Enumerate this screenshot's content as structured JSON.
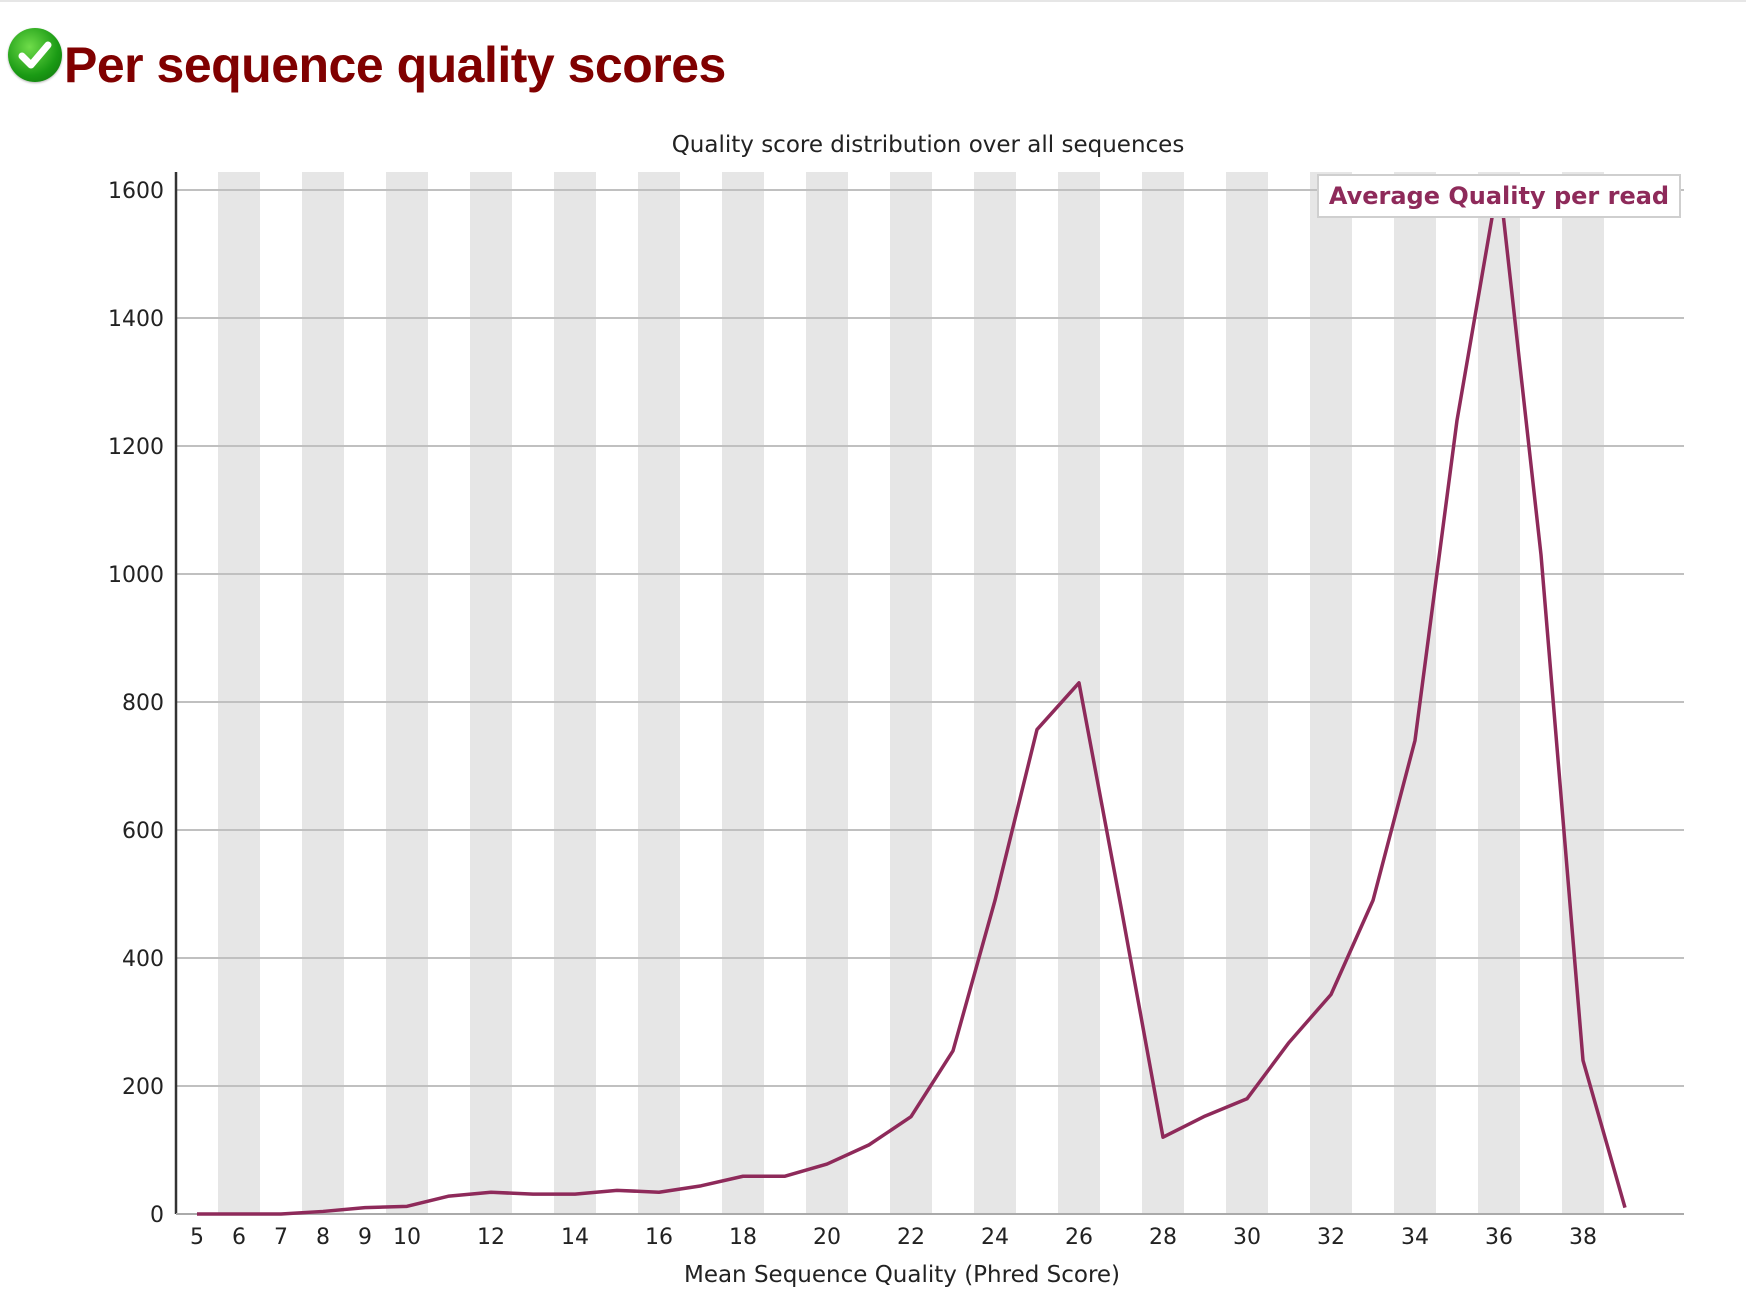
{
  "header": {
    "status_icon": "check-circle-icon",
    "title": "Per sequence quality scores"
  },
  "colors": {
    "title": "#800000",
    "line": "#8e2a5a",
    "stripe": "#e6e6e6",
    "grid": "#c0c0c0"
  },
  "chart_data": {
    "type": "line",
    "title": "Quality score distribution over all sequences",
    "xlabel": "Mean Sequence Quality (Phred Score)",
    "ylabel": "",
    "ylim": [
      0,
      1600
    ],
    "yticks": [
      0,
      200,
      400,
      600,
      800,
      1000,
      1200,
      1400,
      1600
    ],
    "xtick_labels": [
      "5",
      "6",
      "7",
      "8",
      "9",
      "10",
      "12",
      "14",
      "16",
      "18",
      "20",
      "22",
      "24",
      "26",
      "28",
      "30",
      "32",
      "34",
      "36",
      "38"
    ],
    "legend": [
      "Average Quality per read"
    ],
    "legend_position": "top-right",
    "grid": true,
    "x": [
      5,
      6,
      7,
      8,
      9,
      10,
      11,
      12,
      13,
      14,
      15,
      16,
      17,
      18,
      19,
      20,
      21,
      22,
      23,
      24,
      25,
      26,
      27,
      28,
      29,
      30,
      31,
      32,
      33,
      34,
      35,
      36,
      37,
      38,
      39
    ],
    "series": [
      {
        "name": "Average Quality per read",
        "values": [
          0,
          0,
          0,
          4,
          10,
          12,
          28,
          34,
          31,
          31,
          37,
          34,
          44,
          59,
          59,
          78,
          108,
          152,
          255,
          490,
          757,
          830,
          480,
          120,
          153,
          180,
          268,
          343,
          490,
          740,
          1240,
          1620,
          1030,
          240,
          10
        ]
      }
    ]
  }
}
